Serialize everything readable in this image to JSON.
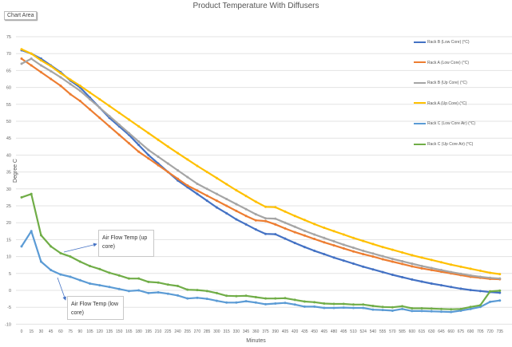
{
  "chart_area_tooltip": "Chart Area",
  "chart_data": {
    "type": "line",
    "title": "Product Temperature With Diffusers",
    "xlabel": "Minutes",
    "ylabel": "Degree C",
    "ylim": [
      -10,
      75
    ],
    "ytick_step": 5,
    "grid": true,
    "legend_position": "right",
    "categories": [
      "0",
      "15",
      "30",
      "45",
      "60",
      "75",
      "90",
      "105",
      "120",
      "135",
      "150",
      "165",
      "180",
      "195",
      "210",
      "225",
      "240",
      "255",
      "270",
      "285",
      "300",
      "315",
      "330",
      "345",
      "360",
      "375",
      "390",
      "405",
      "420",
      "435",
      "450",
      "465",
      "480",
      "495",
      "510",
      "524",
      "540",
      "555",
      "570",
      "585",
      "600",
      "615",
      "630",
      "645",
      "660",
      "675",
      "690",
      "705",
      "720",
      "735"
    ],
    "series": [
      {
        "name": "Rack B (Low Core) (°C)",
        "color": "#4472c4",
        "values": [
          71,
          70,
          68.5,
          66.5,
          64.5,
          62,
          60,
          57,
          54,
          51,
          48.5,
          46,
          43,
          40,
          37.5,
          35,
          32.5,
          30.5,
          28.5,
          26.5,
          24.5,
          22.8,
          21,
          19.5,
          18,
          16.7,
          16.6,
          15.3,
          14,
          12.8,
          11.7,
          10.7,
          9.7,
          8.8,
          7.9,
          7,
          6.2,
          5.4,
          4.6,
          3.9,
          3.2,
          2.6,
          2,
          1.5,
          1,
          0.5,
          0.1,
          -0.2,
          -0.5,
          -0.7
        ]
      },
      {
        "name": "Rack A (Low Core) (°C)",
        "color": "#ed7d31",
        "values": [
          68.5,
          66.5,
          64.5,
          62.5,
          60.5,
          58,
          56,
          53.5,
          51,
          48.5,
          46,
          43.5,
          41,
          39,
          37,
          35,
          33,
          31,
          29.5,
          28,
          26.5,
          25,
          23.5,
          22,
          20.7,
          20.5,
          19.5,
          18.3,
          17.2,
          16.2,
          15.2,
          14.2,
          13.3,
          12.4,
          11.5,
          10.7,
          10,
          9.2,
          8.5,
          7.8,
          7.1,
          6.5,
          6,
          5.5,
          5,
          4.5,
          4,
          3.7,
          3.4,
          3.3
        ]
      },
      {
        "name": "Rack B (Up Core) (°C)",
        "color": "#a5a5a5",
        "values": [
          67,
          68.5,
          66.5,
          64.8,
          63,
          61,
          59,
          56.5,
          54,
          51.5,
          49,
          46.5,
          44,
          41.5,
          39.5,
          37.5,
          35.5,
          33.5,
          31.5,
          30,
          28.5,
          27,
          25.5,
          24,
          22.5,
          21.3,
          21.2,
          20,
          18.8,
          17.6,
          16.5,
          15.5,
          14.5,
          13.5,
          12.6,
          11.7,
          10.9,
          10.1,
          9.3,
          8.6,
          7.9,
          7.2,
          6.6,
          6,
          5.4,
          4.9,
          4.4,
          4,
          3.7,
          3.5
        ]
      },
      {
        "name": "Rack A  (Up Core) (°C)",
        "color": "#ffc000",
        "values": [
          71.3,
          70,
          68,
          66.3,
          64.2,
          62.3,
          60.5,
          58.5,
          56.5,
          54.5,
          52.5,
          50.5,
          48.5,
          46.5,
          44.5,
          42.5,
          40.6,
          38.7,
          36.8,
          35,
          33.2,
          31.4,
          29.6,
          27.9,
          26.2,
          24.7,
          24.6,
          23.3,
          22,
          20.8,
          19.6,
          18.5,
          17.5,
          16.5,
          15.5,
          14.6,
          13.7,
          12.8,
          12,
          11.2,
          10.4,
          9.7,
          9,
          8.3,
          7.6,
          7,
          6.4,
          5.8,
          5.2,
          4.8
        ]
      },
      {
        "name": "Rack C (Low Core Air) (°C)",
        "color": "#5b9bd5",
        "values": [
          13,
          17.5,
          8.5,
          6,
          4.7,
          4,
          3,
          2,
          1.5,
          1,
          0.4,
          -0.2,
          0,
          -0.8,
          -0.6,
          -1,
          -1.5,
          -2.4,
          -2.2,
          -2.5,
          -3.1,
          -3.6,
          -3.6,
          -3.2,
          -3.6,
          -4.1,
          -3.9,
          -3.7,
          -4.2,
          -4.8,
          -4.8,
          -5.2,
          -5.2,
          -5.1,
          -5.2,
          -5.2,
          -5.7,
          -5.8,
          -6,
          -5.5,
          -6.1,
          -6.1,
          -6.2,
          -6.3,
          -6.4,
          -6,
          -5.5,
          -4.9,
          -3.4,
          -3
        ]
      },
      {
        "name": "Rack C (Up Core Air) (°C)",
        "color": "#70ad47",
        "values": [
          27.5,
          28.5,
          16.3,
          13,
          11,
          10,
          8.5,
          7.2,
          6.3,
          5.2,
          4.4,
          3.5,
          3.5,
          2.5,
          2.3,
          1.7,
          1.3,
          0.2,
          0.1,
          -0.2,
          -0.8,
          -1.6,
          -1.7,
          -1.6,
          -2,
          -2.4,
          -2.4,
          -2.3,
          -2.8,
          -3.3,
          -3.5,
          -3.9,
          -4,
          -4,
          -4.2,
          -4.2,
          -4.6,
          -4.9,
          -5,
          -4.7,
          -5.3,
          -5.3,
          -5.4,
          -5.5,
          -5.6,
          -5.5,
          -4.9,
          -4.4,
          -0.3,
          -0.1
        ]
      }
    ],
    "annotations": [
      {
        "text": "Air Flow Temp (up core)",
        "target_series": "Rack C (Up Core Air) (°C)"
      },
      {
        "text": "Air Flow Temp (low core)",
        "target_series": "Rack C (Low Core Air) (°C)"
      }
    ]
  }
}
